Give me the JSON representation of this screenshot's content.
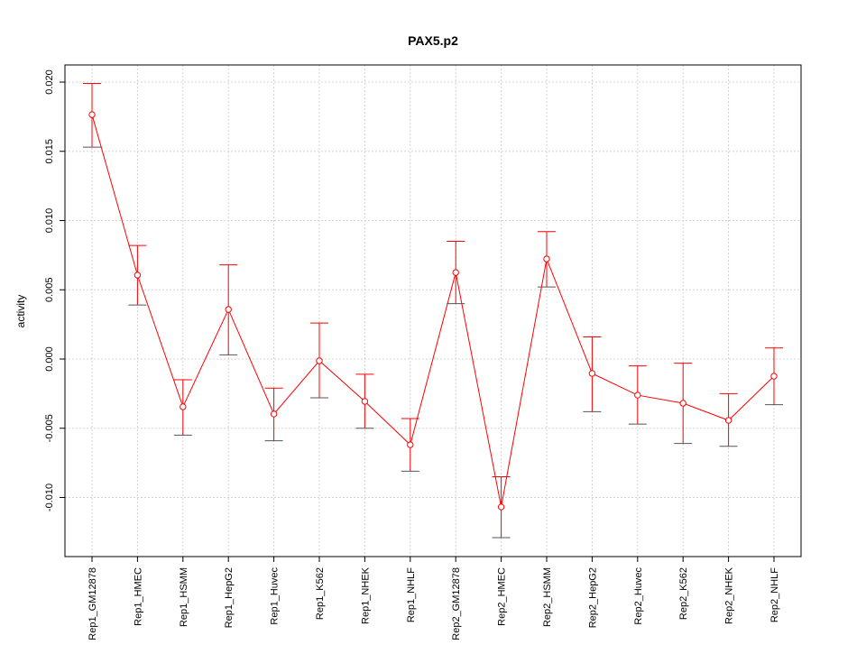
{
  "chart_data": {
    "type": "line",
    "title": "PAX5.p2",
    "xlabel": "",
    "ylabel": "activity",
    "ylim": [
      -0.0143,
      0.0212
    ],
    "grid": true,
    "yticks": [
      "-0.010",
      "-0.005",
      "0.000",
      "0.005",
      "0.010",
      "0.015",
      "0.020"
    ],
    "ytick_values": [
      -0.01,
      -0.005,
      0,
      0.005,
      0.01,
      0.015,
      0.02
    ],
    "categories": [
      "Rep1_GM12878",
      "Rep1_HMEC",
      "Rep1_HSMM",
      "Rep1_HepG2",
      "Rep1_Huvec",
      "Rep1_K562",
      "Rep1_NHEK",
      "Rep1_NHLF",
      "Rep2_GM12878",
      "Rep2_HMEC",
      "Rep2_HSMM",
      "Rep2_HepG2",
      "Rep2_Huvec",
      "Rep2_K562",
      "Rep2_NHEK",
      "Rep2_NHLF"
    ],
    "values": [
      0.01765,
      0.00606,
      -0.00345,
      0.00358,
      -0.00397,
      -0.00013,
      -0.00306,
      -0.00619,
      0.00625,
      -0.01068,
      0.00723,
      -0.00104,
      -0.00261,
      -0.00319,
      -0.00443,
      -0.00124
    ],
    "upper": [
      0.0199,
      0.0082,
      -0.0015,
      0.0068,
      -0.0021,
      0.0026,
      -0.0011,
      -0.0043,
      0.0085,
      -0.0085,
      0.0092,
      0.0016,
      -0.0005,
      -0.0003,
      -0.0025,
      0.0008
    ],
    "lower": [
      0.0153,
      0.0039,
      -0.0055,
      0.0003,
      -0.0059,
      -0.0028,
      -0.005,
      -0.0081,
      0.004,
      -0.0129,
      0.0052,
      -0.0038,
      -0.0047,
      -0.0061,
      -0.0063,
      -0.0033
    ],
    "color": "#ff0000"
  }
}
